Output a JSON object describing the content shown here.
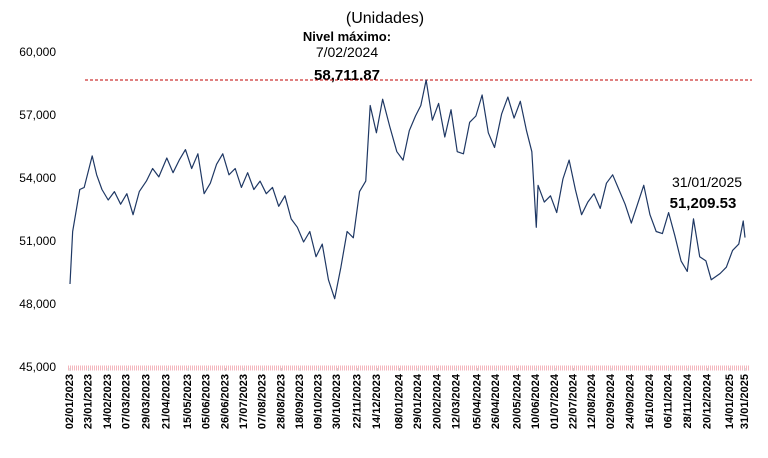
{
  "chart_data": {
    "type": "line",
    "title": "(Unidades)",
    "x": [
      "2023-01-02",
      "2023-01-05",
      "2023-01-09",
      "2023-01-13",
      "2023-01-18",
      "2023-01-24",
      "2023-01-27",
      "2023-02-01",
      "2023-02-07",
      "2023-02-14",
      "2023-02-21",
      "2023-02-28",
      "2023-03-07",
      "2023-03-14",
      "2023-03-21",
      "2023-03-29",
      "2023-04-05",
      "2023-04-12",
      "2023-04-21",
      "2023-04-28",
      "2023-05-05",
      "2023-05-12",
      "2023-05-19",
      "2023-05-26",
      "2023-06-02",
      "2023-06-09",
      "2023-06-16",
      "2023-06-23",
      "2023-06-30",
      "2023-07-07",
      "2023-07-14",
      "2023-07-21",
      "2023-07-28",
      "2023-08-04",
      "2023-08-11",
      "2023-08-18",
      "2023-08-25",
      "2023-09-01",
      "2023-09-08",
      "2023-09-15",
      "2023-09-22",
      "2023-09-29",
      "2023-10-06",
      "2023-10-13",
      "2023-10-20",
      "2023-10-27",
      "2023-11-03",
      "2023-11-10",
      "2023-11-17",
      "2023-11-24",
      "2023-12-01",
      "2023-12-06",
      "2023-12-13",
      "2023-12-20",
      "2023-12-28",
      "2024-01-05",
      "2024-01-12",
      "2024-01-19",
      "2024-01-26",
      "2024-02-01",
      "2024-02-07",
      "2024-02-14",
      "2024-02-21",
      "2024-02-28",
      "2024-03-06",
      "2024-03-13",
      "2024-03-20",
      "2024-03-27",
      "2024-04-03",
      "2024-04-10",
      "2024-04-17",
      "2024-04-24",
      "2024-05-02",
      "2024-05-09",
      "2024-05-16",
      "2024-05-23",
      "2024-05-30",
      "2024-06-05",
      "2024-06-10",
      "2024-06-12",
      "2024-06-19",
      "2024-06-26",
      "2024-07-03",
      "2024-07-10",
      "2024-07-17",
      "2024-07-24",
      "2024-07-31",
      "2024-08-07",
      "2024-08-14",
      "2024-08-21",
      "2024-08-28",
      "2024-09-04",
      "2024-09-11",
      "2024-09-18",
      "2024-09-25",
      "2024-10-02",
      "2024-10-09",
      "2024-10-16",
      "2024-10-23",
      "2024-10-30",
      "2024-11-06",
      "2024-11-13",
      "2024-11-20",
      "2024-11-27",
      "2024-12-04",
      "2024-12-11",
      "2024-12-18",
      "2024-12-24",
      "2025-01-03",
      "2025-01-10",
      "2025-01-17",
      "2025-01-24",
      "2025-01-29",
      "2025-01-31"
    ],
    "series": [
      {
        "name": "Nivel",
        "color": "#1f3864",
        "values": [
          49000,
          51500,
          52500,
          53500,
          53600,
          54600,
          55100,
          54200,
          53500,
          53000,
          53400,
          52800,
          53300,
          52300,
          53400,
          53900,
          54500,
          54100,
          55000,
          54300,
          54900,
          55400,
          54500,
          55200,
          53300,
          53800,
          54700,
          55200,
          54200,
          54500,
          53600,
          54300,
          53500,
          53900,
          53300,
          53600,
          52700,
          53200,
          52100,
          51700,
          51000,
          51500,
          50300,
          50900,
          49200,
          48300,
          49800,
          51500,
          51200,
          53400,
          53900,
          57500,
          56200,
          57800,
          56500,
          55300,
          54900,
          56300,
          57000,
          57500,
          58711.87,
          56800,
          57600,
          56000,
          57300,
          55300,
          55200,
          56700,
          57000,
          58000,
          56200,
          55500,
          57100,
          57900,
          56900,
          57700,
          56300,
          55300,
          51700,
          53700,
          52900,
          53200,
          52400,
          54000,
          54900,
          53500,
          52300,
          52900,
          53300,
          52600,
          53800,
          54200,
          53500,
          52800,
          51900,
          52800,
          53700,
          52300,
          51500,
          51400,
          52400,
          51300,
          50100,
          49600,
          52100,
          50300,
          50100,
          49200,
          49500,
          49800,
          50600,
          50900,
          52000,
          51209.53
        ]
      }
    ],
    "xlim": [
      "2023-01-02",
      "2025-01-31"
    ],
    "xticks": [
      {
        "value": "2023-01-02",
        "label": "02/01/2023"
      },
      {
        "value": "2023-01-23",
        "label": "23/01/2023"
      },
      {
        "value": "2023-02-14",
        "label": "14/02/2023"
      },
      {
        "value": "2023-03-07",
        "label": "07/03/2023"
      },
      {
        "value": "2023-03-29",
        "label": "29/03/2023"
      },
      {
        "value": "2023-04-21",
        "label": "21/04/2023"
      },
      {
        "value": "2023-05-15",
        "label": "15/05/2023"
      },
      {
        "value": "2023-06-05",
        "label": "05/06/2023"
      },
      {
        "value": "2023-06-26",
        "label": "26/06/2023"
      },
      {
        "value": "2023-07-17",
        "label": "17/07/2023"
      },
      {
        "value": "2023-08-07",
        "label": "07/08/2023"
      },
      {
        "value": "2023-08-28",
        "label": "28/08/2023"
      },
      {
        "value": "2023-09-18",
        "label": "18/09/2023"
      },
      {
        "value": "2023-10-09",
        "label": "09/10/2023"
      },
      {
        "value": "2023-10-30",
        "label": "30/10/2023"
      },
      {
        "value": "2023-11-22",
        "label": "22/11/2023"
      },
      {
        "value": "2023-12-14",
        "label": "14/12/2023"
      },
      {
        "value": "2024-01-08",
        "label": "08/01/2024"
      },
      {
        "value": "2024-01-29",
        "label": "29/01/2024"
      },
      {
        "value": "2024-02-20",
        "label": "20/02/2024"
      },
      {
        "value": "2024-03-12",
        "label": "12/03/2024"
      },
      {
        "value": "2024-04-05",
        "label": "05/04/2024"
      },
      {
        "value": "2024-04-26",
        "label": "26/04/2024"
      },
      {
        "value": "2024-05-20",
        "label": "20/05/2024"
      },
      {
        "value": "2024-06-10",
        "label": "10/06/2024"
      },
      {
        "value": "2024-07-01",
        "label": "01/07/2024"
      },
      {
        "value": "2024-07-22",
        "label": "22/07/2024"
      },
      {
        "value": "2024-08-12",
        "label": "12/08/2024"
      },
      {
        "value": "2024-09-02",
        "label": "02/09/2024"
      },
      {
        "value": "2024-09-24",
        "label": "24/09/2024"
      },
      {
        "value": "2024-10-16",
        "label": "16/10/2024"
      },
      {
        "value": "2024-11-06",
        "label": "06/11/2024"
      },
      {
        "value": "2024-11-28",
        "label": "28/11/2024"
      },
      {
        "value": "2024-12-20",
        "label": "20/12/2024"
      },
      {
        "value": "2025-01-14",
        "label": "14/01/2025"
      },
      {
        "value": "2025-01-31",
        "label": "31/01/2025"
      }
    ],
    "ylim": [
      45000,
      60000
    ],
    "yticks": [
      {
        "value": 45000,
        "label": "45,000"
      },
      {
        "value": 48000,
        "label": "48,000"
      },
      {
        "value": 51000,
        "label": "51,000"
      },
      {
        "value": 54000,
        "label": "54,000"
      },
      {
        "value": 57000,
        "label": "57,000"
      },
      {
        "value": 60000,
        "label": "60,000"
      }
    ],
    "annotations": [
      {
        "heading": "Nivel máximo:",
        "date": "7/02/2024",
        "value": 58711.87,
        "value_label": "58,711.87"
      },
      {
        "date": "31/01/2025",
        "value": 51209.53,
        "value_label": "51,209.53"
      }
    ]
  }
}
